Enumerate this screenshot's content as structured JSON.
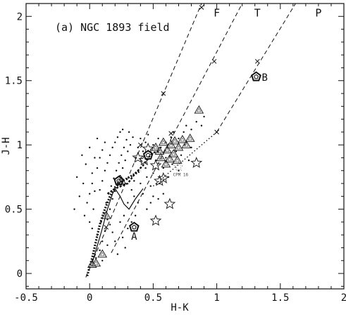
{
  "chart_data": {
    "type": "scatter",
    "panel_label": "(a) NGC 1893 field",
    "xlabel": "H-K",
    "ylabel": "J-H",
    "xlim": [
      -0.5,
      2.0
    ],
    "ylim": [
      -0.12,
      2.1
    ],
    "x_ticks": [
      -0.5,
      0,
      0.5,
      1,
      1.5,
      2
    ],
    "x_tick_labels": [
      "-0.5",
      "0",
      "0.5",
      "1",
      "1.5",
      "2"
    ],
    "y_ticks": [
      0,
      0.5,
      1,
      1.5,
      2
    ],
    "y_tick_labels": [
      "0",
      "0.5",
      "1",
      "1.5",
      "2"
    ],
    "grid": false,
    "region_labels": [
      {
        "text": "F",
        "x": 1.0,
        "y": 2.0
      },
      {
        "text": "T",
        "x": 1.32,
        "y": 2.0
      },
      {
        "text": "P",
        "x": 1.8,
        "y": 2.0
      }
    ],
    "reddening_vectors": [
      {
        "line": [
          [
            -0.03,
            -0.03
          ],
          [
            0.88,
            2.1
          ]
        ],
        "crosses": [
          [
            0.13,
            0.36
          ],
          [
            0.4,
            1.0
          ],
          [
            0.58,
            1.4
          ],
          [
            0.88,
            2.07
          ]
        ]
      },
      {
        "line": [
          [
            0.17,
            0.16
          ],
          [
            1.2,
            2.1
          ]
        ],
        "crosses": [
          [
            0.64,
            1.09
          ],
          [
            0.98,
            1.65
          ]
        ]
      },
      {
        "line": [
          [
            1.0,
            1.1
          ],
          [
            1.62,
            2.1
          ]
        ],
        "crosses": [
          [
            1.0,
            1.1
          ],
          [
            1.32,
            1.65
          ]
        ]
      }
    ],
    "ctts_locus": [
      [
        0.5,
        0.68
      ],
      [
        1.0,
        1.1
      ]
    ],
    "dwarf_locus": [
      [
        -0.02,
        -0.02
      ],
      [
        0.02,
        0.12
      ],
      [
        0.05,
        0.25
      ],
      [
        0.08,
        0.38
      ],
      [
        0.12,
        0.5
      ],
      [
        0.16,
        0.6
      ],
      [
        0.2,
        0.67
      ],
      [
        0.26,
        0.72
      ],
      [
        0.33,
        0.76
      ],
      [
        0.4,
        0.8
      ]
    ],
    "giant_locus": [
      [
        0.14,
        0.62
      ],
      [
        0.2,
        0.66
      ],
      [
        0.25,
        0.68
      ],
      [
        0.3,
        0.7
      ],
      [
        0.36,
        0.78
      ],
      [
        0.42,
        0.84
      ],
      [
        0.46,
        0.9
      ],
      [
        0.5,
        0.94
      ],
      [
        0.55,
        0.95
      ]
    ],
    "intrinsic_curve": [
      [
        0.02,
        0.08
      ],
      [
        0.05,
        0.18
      ],
      [
        0.1,
        0.35
      ],
      [
        0.14,
        0.5
      ],
      [
        0.18,
        0.62
      ],
      [
        0.2,
        0.66
      ],
      [
        0.24,
        0.6
      ],
      [
        0.27,
        0.54
      ],
      [
        0.31,
        0.5
      ],
      [
        0.36,
        0.58
      ],
      [
        0.42,
        0.66
      ]
    ],
    "field_points": [
      [
        0.05,
        0.12
      ],
      [
        0.08,
        0.18
      ],
      [
        0.1,
        0.25
      ],
      [
        0.06,
        0.3
      ],
      [
        0.12,
        0.33
      ],
      [
        0.09,
        0.4
      ],
      [
        0.14,
        0.42
      ],
      [
        0.11,
        0.47
      ],
      [
        0.16,
        0.5
      ],
      [
        0.13,
        0.55
      ],
      [
        0.18,
        0.58
      ],
      [
        0.15,
        0.62
      ],
      [
        0.2,
        0.64
      ],
      [
        0.17,
        0.68
      ],
      [
        0.22,
        0.7
      ],
      [
        0.19,
        0.74
      ],
      [
        0.24,
        0.76
      ],
      [
        0.21,
        0.8
      ],
      [
        0.26,
        0.82
      ],
      [
        0.23,
        0.86
      ],
      [
        0.28,
        0.88
      ],
      [
        0.25,
        0.92
      ],
      [
        0.3,
        0.95
      ],
      [
        0.27,
        0.98
      ],
      [
        0.32,
        1.0
      ],
      [
        0.29,
        1.04
      ],
      [
        0.34,
        1.06
      ],
      [
        0.31,
        1.1
      ],
      [
        -0.02,
        0.55
      ],
      [
        0.0,
        0.62
      ],
      [
        -0.05,
        0.7
      ],
      [
        0.02,
        0.78
      ],
      [
        -0.03,
        0.85
      ],
      [
        0.04,
        0.9
      ],
      [
        0.0,
        0.98
      ],
      [
        0.06,
        1.05
      ],
      [
        -0.08,
        0.6
      ],
      [
        -0.1,
        0.75
      ],
      [
        -0.06,
        0.92
      ],
      [
        -0.12,
        0.5
      ],
      [
        -0.04,
        0.45
      ],
      [
        0.03,
        0.5
      ],
      [
        0.35,
        0.6
      ],
      [
        0.38,
        0.55
      ],
      [
        0.4,
        0.7
      ],
      [
        0.42,
        0.62
      ],
      [
        0.45,
        0.75
      ],
      [
        0.44,
        0.82
      ],
      [
        0.48,
        0.68
      ],
      [
        0.5,
        0.78
      ],
      [
        0.52,
        0.88
      ],
      [
        0.55,
        0.7
      ],
      [
        0.58,
        0.82
      ],
      [
        0.6,
        0.9
      ],
      [
        0.62,
        0.75
      ],
      [
        0.65,
        0.85
      ],
      [
        0.68,
        0.95
      ],
      [
        0.7,
        0.8
      ],
      [
        0.72,
        0.92
      ],
      [
        0.75,
        1.0
      ],
      [
        0.78,
        0.88
      ],
      [
        0.8,
        0.98
      ],
      [
        0.36,
        0.9
      ],
      [
        0.38,
        0.98
      ],
      [
        0.4,
        1.05
      ],
      [
        0.42,
        0.95
      ],
      [
        0.33,
        0.4
      ],
      [
        0.36,
        0.45
      ],
      [
        0.3,
        0.35
      ],
      [
        0.26,
        0.28
      ],
      [
        0.28,
        0.2
      ],
      [
        0.22,
        0.15
      ],
      [
        0.2,
        0.25
      ],
      [
        0.18,
        0.32
      ],
      [
        0.16,
        0.38
      ],
      [
        0.14,
        0.22
      ],
      [
        0.1,
        0.1
      ],
      [
        0.24,
        0.4
      ],
      [
        0.27,
        0.45
      ],
      [
        0.3,
        0.55
      ],
      [
        0.33,
        0.65
      ],
      [
        0.35,
        0.72
      ],
      [
        0.08,
        0.65
      ],
      [
        0.1,
        0.72
      ],
      [
        0.12,
        0.8
      ],
      [
        0.14,
        0.86
      ],
      [
        0.16,
        0.92
      ],
      [
        0.18,
        0.98
      ],
      [
        0.2,
        1.02
      ],
      [
        0.22,
        1.06
      ],
      [
        0.24,
        1.1
      ],
      [
        0.26,
        1.12
      ],
      [
        0.06,
        0.82
      ],
      [
        0.08,
        0.9
      ],
      [
        0.1,
        0.96
      ],
      [
        0.12,
        1.02
      ],
      [
        0.02,
        0.7
      ],
      [
        0.04,
        0.64
      ],
      [
        0.0,
        0.4
      ],
      [
        0.02,
        0.35
      ],
      [
        0.44,
        1.02
      ],
      [
        0.46,
        1.08
      ],
      [
        0.5,
        1.0
      ],
      [
        0.54,
        1.05
      ],
      [
        0.56,
        0.98
      ],
      [
        0.6,
        1.02
      ],
      [
        0.64,
        1.06
      ],
      [
        0.66,
        1.1
      ],
      [
        0.7,
        1.05
      ],
      [
        0.74,
        1.1
      ],
      [
        0.76,
        1.15
      ],
      [
        0.8,
        1.12
      ],
      [
        0.84,
        1.18
      ],
      [
        0.88,
        1.15
      ],
      [
        0.9,
        1.22
      ],
      [
        0.45,
        0.5
      ],
      [
        0.48,
        0.55
      ],
      [
        0.5,
        0.6
      ],
      [
        0.54,
        0.58
      ],
      [
        0.58,
        0.62
      ]
    ],
    "yso_triangles": [
      [
        0.02,
        0.07
      ],
      [
        0.05,
        0.08
      ],
      [
        0.1,
        0.15
      ],
      [
        0.13,
        0.45
      ],
      [
        0.25,
        0.72
      ],
      [
        0.52,
        0.98
      ],
      [
        0.55,
        0.95
      ],
      [
        0.58,
        1.02
      ],
      [
        0.61,
        0.96
      ],
      [
        0.64,
        1.0
      ],
      [
        0.67,
        1.03
      ],
      [
        0.7,
        0.98
      ],
      [
        0.73,
        1.04
      ],
      [
        0.76,
        1.0
      ],
      [
        0.79,
        1.05
      ],
      [
        0.56,
        0.9
      ],
      [
        0.6,
        0.85
      ],
      [
        0.63,
        0.89
      ],
      [
        0.66,
        0.93
      ],
      [
        0.69,
        0.88
      ],
      [
        0.86,
        1.27
      ]
    ],
    "stars": [
      [
        0.46,
        0.97
      ],
      [
        0.43,
        0.88
      ],
      [
        0.52,
        0.84
      ],
      [
        0.58,
        0.74
      ],
      [
        0.55,
        0.72
      ],
      [
        0.63,
        0.54
      ],
      [
        0.52,
        0.41
      ],
      [
        0.84,
        0.86
      ],
      [
        0.38,
        0.9
      ]
    ],
    "dotted_star": {
      "x": 0.7,
      "y": 0.83,
      "label": "CPM 16"
    },
    "pentagons": [
      {
        "x": 0.35,
        "y": 0.36,
        "label": "A"
      },
      {
        "x": 1.31,
        "y": 1.53,
        "label": "B"
      },
      {
        "x": 0.46,
        "y": 0.92,
        "label": ""
      },
      {
        "x": 0.23,
        "y": 0.72,
        "label": ""
      }
    ]
  }
}
